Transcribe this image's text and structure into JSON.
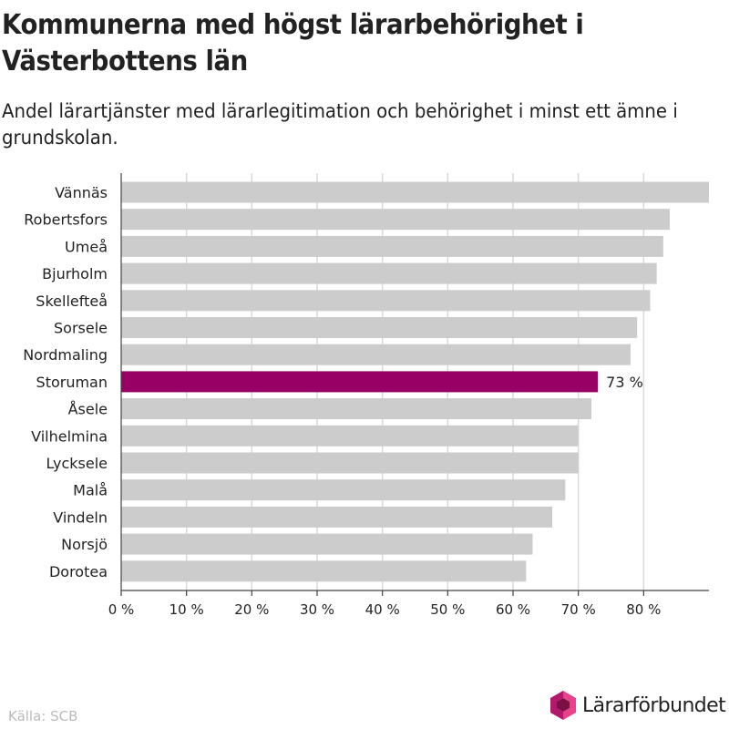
{
  "title": "Kommunerna med högst lärarbehörighet i Västerbottens län",
  "subtitle": "Andel lärartjänster med lärarlegitimation och behörighet i minst ett ämne i grundskolan.",
  "source": "Källa: SCB",
  "brand": "Lärarförbundet",
  "brand_logo_icon": "hexagon-logo-icon",
  "colors": {
    "bar": "#cccccc",
    "highlight": "#990066",
    "grid": "#d9d9d9",
    "text": "#222222",
    "logo_magenta": "#b5176c",
    "logo_pink": "#e8428c",
    "logo_dark": "#7a1043"
  },
  "chart_data": {
    "type": "bar",
    "orientation": "horizontal",
    "categories": [
      "Vännäs",
      "Robertsfors",
      "Umeå",
      "Bjurholm",
      "Skellefteå",
      "Sorsele",
      "Nordmaling",
      "Storuman",
      "Åsele",
      "Vilhelmina",
      "Lycksele",
      "Malå",
      "Vindeln",
      "Norsjö",
      "Dorotea"
    ],
    "values": [
      90,
      84,
      83,
      82,
      81,
      79,
      78,
      73,
      72,
      70,
      70,
      68,
      66,
      63,
      62
    ],
    "highlight": "Storuman",
    "data_labels": [
      {
        "category": "Storuman",
        "text": "73 %"
      }
    ],
    "xlim": [
      0,
      90
    ],
    "xticks": [
      0,
      10,
      20,
      30,
      40,
      50,
      60,
      70,
      80
    ],
    "xtick_labels": [
      "0 %",
      "10 %",
      "20 %",
      "30 %",
      "40 %",
      "50 %",
      "60 %",
      "70 %",
      "80 %"
    ],
    "xlabel": "",
    "ylabel": "",
    "grid": true
  }
}
